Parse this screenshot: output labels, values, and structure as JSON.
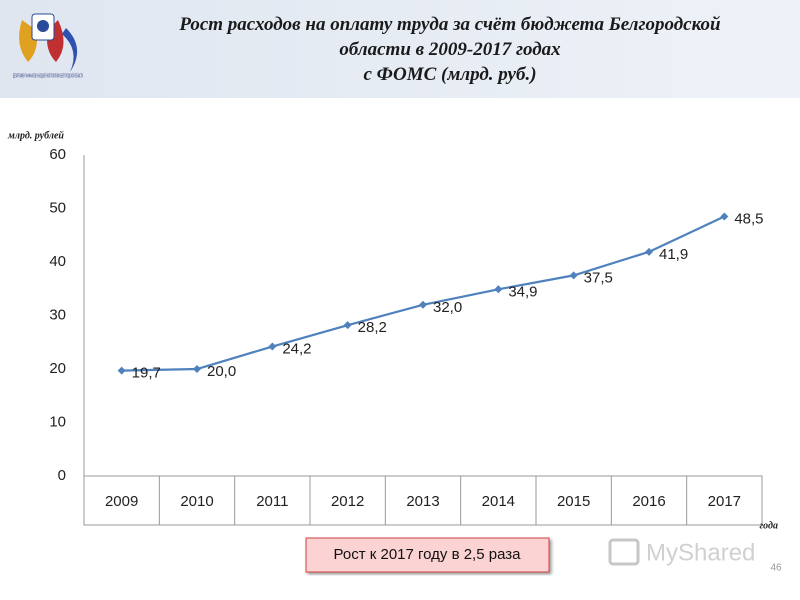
{
  "header": {
    "logo_text": "ДЕПАРТАМЕНТ ФИНАНСОВ И БЮДЖЕТНОЙ ПОЛИТИКИ БЕЛГОРОДСКОЙ ОБЛАСТИ",
    "watermark": "MyShared"
  },
  "chart_data": {
    "type": "line",
    "title": "Рост расходов на оплату труда за счёт бюджета Белгородской\nобласти в 2009-2017 годах\nс ФОМС (млрд. руб.)",
    "y_label": "млрд. рублей",
    "x_label": "года",
    "categories": [
      "2009",
      "2010",
      "2011",
      "2012",
      "2013",
      "2014",
      "2015",
      "2016",
      "2017"
    ],
    "values": [
      19.7,
      20.0,
      24.2,
      28.2,
      32.0,
      34.9,
      37.5,
      41.9,
      48.5
    ],
    "value_labels": [
      "19,7",
      "20,0",
      "24,2",
      "28,2",
      "32,0",
      "34,9",
      "37,5",
      "41,9",
      "48,5"
    ],
    "color": "#4f81bd",
    "ylim": [
      0,
      60
    ],
    "yticks": [
      0,
      10,
      20,
      30,
      40,
      50,
      60
    ],
    "grid": true,
    "annotation": "Рост к 2017 году в 2,5 раза",
    "page_number": "46"
  }
}
